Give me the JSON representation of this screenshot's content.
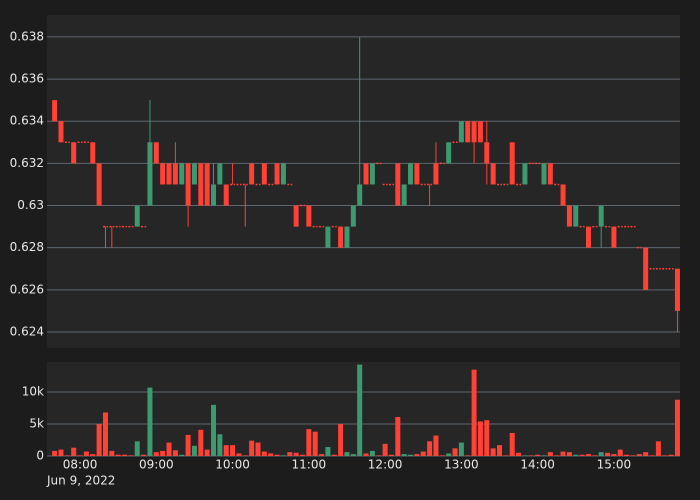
{
  "chart_data": {
    "type": "candlestick",
    "x_sublabel": "Jun 9, 2022",
    "increasing_color": "#3d9970",
    "decreasing_color": "#ff4136",
    "grid": true,
    "x": [
      "07:40",
      "07:45",
      "07:50",
      "07:55",
      "08:00",
      "08:05",
      "08:10",
      "08:15",
      "08:20",
      "08:25",
      "08:30",
      "08:35",
      "08:40",
      "08:45",
      "08:50",
      "08:55",
      "09:00",
      "09:05",
      "09:10",
      "09:15",
      "09:20",
      "09:25",
      "09:30",
      "09:35",
      "09:40",
      "09:45",
      "09:50",
      "09:55",
      "10:00",
      "10:05",
      "10:10",
      "10:15",
      "10:20",
      "10:25",
      "10:30",
      "10:35",
      "10:40",
      "10:45",
      "10:50",
      "10:55",
      "11:00",
      "11:05",
      "11:10",
      "11:15",
      "11:20",
      "11:25",
      "11:30",
      "11:35",
      "11:40",
      "11:45",
      "11:50",
      "11:55",
      "12:00",
      "12:05",
      "12:10",
      "12:15",
      "12:20",
      "12:25",
      "12:30",
      "12:35",
      "12:40",
      "12:45",
      "12:50",
      "12:55",
      "13:00",
      "13:05",
      "13:10",
      "13:15",
      "13:20",
      "13:25",
      "13:30",
      "13:35",
      "13:40",
      "13:45",
      "13:50",
      "13:55",
      "14:00",
      "14:05",
      "14:10",
      "14:15",
      "14:20",
      "14:25",
      "14:30",
      "14:35",
      "14:40",
      "14:45",
      "14:50",
      "14:55",
      "15:00",
      "15:05",
      "15:10",
      "15:15",
      "15:20",
      "15:25",
      "15:30",
      "15:35",
      "15:40",
      "15:45",
      "15:50"
    ],
    "xlim": [
      "07:34",
      "15:52"
    ],
    "xticks": [
      "08:00",
      "09:00",
      "10:00",
      "11:00",
      "12:00",
      "13:00",
      "14:00",
      "15:00"
    ],
    "candles": [
      [
        0.635,
        0.635,
        0.634,
        0.634
      ],
      [
        0.634,
        0.634,
        0.633,
        0.633
      ],
      [
        0.633,
        0.633,
        0.633,
        0.633
      ],
      [
        0.633,
        0.633,
        0.632,
        0.632
      ],
      [
        0.633,
        0.633,
        0.633,
        0.633
      ],
      [
        0.633,
        0.633,
        0.633,
        0.633
      ],
      [
        0.633,
        0.633,
        0.632,
        0.632
      ],
      [
        0.632,
        0.632,
        0.63,
        0.63
      ],
      [
        0.629,
        0.629,
        0.628,
        0.629
      ],
      [
        0.629,
        0.629,
        0.628,
        0.629
      ],
      [
        0.629,
        0.629,
        0.629,
        0.629
      ],
      [
        0.629,
        0.629,
        0.629,
        0.629
      ],
      [
        0.629,
        0.629,
        0.629,
        0.629
      ],
      [
        0.629,
        0.63,
        0.629,
        0.63
      ],
      [
        0.629,
        0.629,
        0.629,
        0.629
      ],
      [
        0.63,
        0.635,
        0.63,
        0.633
      ],
      [
        0.633,
        0.633,
        0.632,
        0.632
      ],
      [
        0.632,
        0.632,
        0.631,
        0.631
      ],
      [
        0.632,
        0.632,
        0.631,
        0.631
      ],
      [
        0.632,
        0.633,
        0.631,
        0.631
      ],
      [
        0.631,
        0.632,
        0.631,
        0.632
      ],
      [
        0.632,
        0.632,
        0.629,
        0.63
      ],
      [
        0.631,
        0.632,
        0.631,
        0.632
      ],
      [
        0.632,
        0.632,
        0.63,
        0.63
      ],
      [
        0.632,
        0.632,
        0.63,
        0.63
      ],
      [
        0.63,
        0.632,
        0.63,
        0.631
      ],
      [
        0.631,
        0.632,
        0.631,
        0.632
      ],
      [
        0.631,
        0.631,
        0.63,
        0.63
      ],
      [
        0.631,
        0.632,
        0.631,
        0.631
      ],
      [
        0.631,
        0.631,
        0.631,
        0.631
      ],
      [
        0.631,
        0.631,
        0.629,
        0.631
      ],
      [
        0.632,
        0.632,
        0.631,
        0.631
      ],
      [
        0.631,
        0.631,
        0.631,
        0.631
      ],
      [
        0.632,
        0.632,
        0.631,
        0.631
      ],
      [
        0.631,
        0.631,
        0.631,
        0.631
      ],
      [
        0.632,
        0.632,
        0.631,
        0.631
      ],
      [
        0.631,
        0.632,
        0.631,
        0.632
      ],
      [
        0.631,
        0.631,
        0.631,
        0.631
      ],
      [
        0.63,
        0.63,
        0.629,
        0.629
      ],
      [
        0.63,
        0.63,
        0.63,
        0.63
      ],
      [
        0.63,
        0.63,
        0.629,
        0.629
      ],
      [
        0.629,
        0.629,
        0.629,
        0.629
      ],
      [
        0.629,
        0.629,
        0.629,
        0.629
      ],
      [
        0.628,
        0.629,
        0.628,
        0.629
      ],
      [
        0.629,
        0.629,
        0.629,
        0.629
      ],
      [
        0.629,
        0.629,
        0.628,
        0.628
      ],
      [
        0.628,
        0.629,
        0.628,
        0.629
      ],
      [
        0.629,
        0.63,
        0.629,
        0.63
      ],
      [
        0.63,
        0.638,
        0.63,
        0.631
      ],
      [
        0.632,
        0.632,
        0.631,
        0.631
      ],
      [
        0.631,
        0.632,
        0.631,
        0.632
      ],
      [
        0.632,
        0.632,
        0.632,
        0.632
      ],
      [
        0.631,
        0.631,
        0.631,
        0.631
      ],
      [
        0.631,
        0.631,
        0.631,
        0.631
      ],
      [
        0.632,
        0.632,
        0.63,
        0.63
      ],
      [
        0.63,
        0.631,
        0.63,
        0.631
      ],
      [
        0.631,
        0.632,
        0.631,
        0.632
      ],
      [
        0.632,
        0.632,
        0.631,
        0.631
      ],
      [
        0.631,
        0.631,
        0.631,
        0.631
      ],
      [
        0.631,
        0.631,
        0.63,
        0.631
      ],
      [
        0.632,
        0.633,
        0.631,
        0.631
      ],
      [
        0.632,
        0.632,
        0.632,
        0.632
      ],
      [
        0.632,
        0.633,
        0.632,
        0.633
      ],
      [
        0.633,
        0.633,
        0.633,
        0.633
      ],
      [
        0.633,
        0.634,
        0.633,
        0.634
      ],
      [
        0.634,
        0.634,
        0.633,
        0.633
      ],
      [
        0.634,
        0.634,
        0.632,
        0.633
      ],
      [
        0.634,
        0.634,
        0.633,
        0.633
      ],
      [
        0.633,
        0.634,
        0.631,
        0.632
      ],
      [
        0.632,
        0.632,
        0.631,
        0.631
      ],
      [
        0.631,
        0.631,
        0.631,
        0.631
      ],
      [
        0.631,
        0.631,
        0.631,
        0.631
      ],
      [
        0.633,
        0.633,
        0.631,
        0.631
      ],
      [
        0.631,
        0.631,
        0.631,
        0.631
      ],
      [
        0.631,
        0.632,
        0.631,
        0.632
      ],
      [
        0.632,
        0.632,
        0.632,
        0.632
      ],
      [
        0.632,
        0.632,
        0.632,
        0.632
      ],
      [
        0.631,
        0.632,
        0.631,
        0.632
      ],
      [
        0.632,
        0.632,
        0.631,
        0.631
      ],
      [
        0.631,
        0.631,
        0.631,
        0.631
      ],
      [
        0.631,
        0.631,
        0.63,
        0.63
      ],
      [
        0.63,
        0.63,
        0.629,
        0.629
      ],
      [
        0.629,
        0.63,
        0.629,
        0.63
      ],
      [
        0.629,
        0.629,
        0.629,
        0.629
      ],
      [
        0.629,
        0.629,
        0.628,
        0.628
      ],
      [
        0.629,
        0.629,
        0.629,
        0.629
      ],
      [
        0.629,
        0.63,
        0.628,
        0.63
      ],
      [
        0.629,
        0.629,
        0.629,
        0.629
      ],
      [
        0.629,
        0.629,
        0.628,
        0.628
      ],
      [
        0.629,
        0.629,
        0.629,
        0.629
      ],
      [
        0.629,
        0.629,
        0.629,
        0.629
      ],
      [
        0.629,
        0.629,
        0.629,
        0.629
      ],
      [
        0.628,
        0.628,
        0.628,
        0.628
      ],
      [
        0.628,
        0.628,
        0.626,
        0.626
      ],
      [
        0.627,
        0.627,
        0.627,
        0.627
      ],
      [
        0.627,
        0.627,
        0.627,
        0.627
      ],
      [
        0.627,
        0.627,
        0.627,
        0.627
      ],
      [
        0.627,
        0.627,
        0.627,
        0.627
      ],
      [
        0.627,
        0.627,
        0.624,
        0.625
      ]
    ],
    "ylim": [
      0.62324,
      0.63904
    ],
    "yticks": [
      0.624,
      0.626,
      0.628,
      0.63,
      0.632,
      0.634,
      0.636,
      0.638
    ],
    "volume": [
      800,
      1000,
      100,
      1300,
      100,
      700,
      300,
      5000,
      6800,
      800,
      200,
      200,
      100,
      2300,
      200,
      10700,
      600,
      800,
      2100,
      900,
      200,
      3300,
      1600,
      4100,
      1000,
      8000,
      3400,
      1700,
      1700,
      400,
      100,
      2400,
      2100,
      700,
      400,
      200,
      100,
      600,
      500,
      200,
      4200,
      3800,
      300,
      1400,
      200,
      5000,
      600,
      300,
      14300,
      400,
      800,
      100,
      1900,
      200,
      6100,
      300,
      200,
      300,
      700,
      2300,
      3200,
      100,
      400,
      1200,
      2100,
      100,
      13500,
      5400,
      5600,
      1200,
      1700,
      100,
      3600,
      500,
      100,
      100,
      200,
      100,
      600,
      100,
      700,
      600,
      200,
      200,
      300,
      100,
      600,
      500,
      300,
      1000,
      200,
      100,
      300,
      600,
      100,
      2300,
      100,
      200,
      8800
    ],
    "volume_ylim": [
      0,
      14700
    ],
    "volume_ticks": [
      0,
      {
        "value": 5000,
        "label": "5k"
      },
      {
        "value": 10000,
        "label": "10k"
      }
    ]
  }
}
